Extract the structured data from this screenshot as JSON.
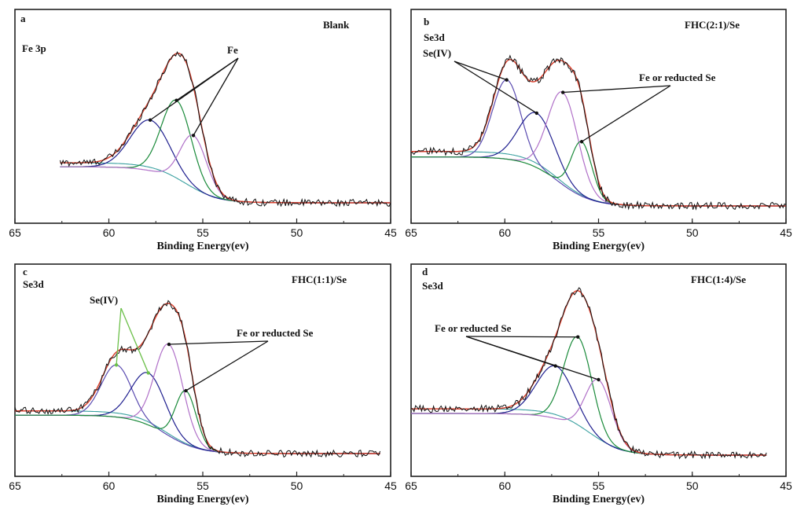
{
  "chart_data": [
    {
      "type": "line",
      "panel_label": "a",
      "sample": "Blank",
      "region": "Fe 3p",
      "xlabel": "Binding Energy(ev)",
      "ylabel": "",
      "xlim": [
        65,
        45
      ],
      "x_ticks": [
        "65",
        "60",
        "55",
        "50",
        "45"
      ],
      "x_range": [
        62.6,
        45
      ],
      "baseline": 0.0,
      "background_low_start": 0.26,
      "components": [
        {
          "name": "Fe",
          "center": 57.8,
          "height": 0.33,
          "width": 1.05,
          "color": "#1f1f8f"
        },
        {
          "name": "Fe",
          "center": 56.4,
          "height": 0.52,
          "width": 0.8,
          "color": "#1a8a3a"
        },
        {
          "name": "Fe",
          "center": 55.5,
          "height": 0.35,
          "width": 0.7,
          "color": "#b070c8"
        }
      ],
      "annotations": [
        {
          "text": "Fe",
          "targets": [
            57.8,
            56.4,
            55.5
          ]
        }
      ]
    },
    {
      "type": "line",
      "panel_label": "b",
      "sample": "FHC(2:1)/Se",
      "region": "Se3d",
      "xlabel": "Binding Energy(ev)",
      "ylabel": "",
      "xlim": [
        65,
        45
      ],
      "x_ticks": [
        "65",
        "60",
        "55",
        "50",
        "45"
      ],
      "x_range": [
        65,
        45
      ],
      "baseline": 0.0,
      "background_low_start": 0.33,
      "components": [
        {
          "name": "Se(IV)",
          "center": 59.9,
          "height": 0.48,
          "width": 0.75,
          "color": "#5a4bb0"
        },
        {
          "name": "Se(IV)",
          "center": 58.3,
          "height": 0.33,
          "width": 0.95,
          "color": "#1f1f8f"
        },
        {
          "name": "Fe or reducted Se",
          "center": 56.9,
          "height": 0.56,
          "width": 0.8,
          "color": "#b070c8"
        },
        {
          "name": "Fe or reducted Se",
          "center": 55.9,
          "height": 0.33,
          "width": 0.55,
          "color": "#1a8a3a"
        }
      ],
      "annotations": [
        {
          "text": "Se(IV)",
          "targets": [
            59.9,
            58.3
          ]
        },
        {
          "text": "Fe or reducted Se",
          "targets": [
            56.9,
            55.9
          ]
        }
      ]
    },
    {
      "type": "line",
      "panel_label": "c",
      "sample": "FHC(1:1)/Se",
      "region": "Se3d",
      "xlabel": "Binding Energy(ev)",
      "ylabel": "",
      "xlim": [
        65,
        45
      ],
      "x_ticks": [
        "65",
        "60",
        "55",
        "50",
        "45"
      ],
      "x_range": [
        65,
        45.5
      ],
      "baseline": 0.0,
      "background_low_start": 0.27,
      "components": [
        {
          "name": "Se(IV)",
          "center": 59.6,
          "height": 0.33,
          "width": 0.8,
          "color": "#5a4bb0"
        },
        {
          "name": "Se(IV)",
          "center": 57.9,
          "height": 0.33,
          "width": 0.9,
          "color": "#1f1f8f"
        },
        {
          "name": "Fe or reducted Se",
          "center": 56.8,
          "height": 0.58,
          "width": 0.75,
          "color": "#b070c8"
        },
        {
          "name": "Fe or reducted Se",
          "center": 55.9,
          "height": 0.34,
          "width": 0.55,
          "color": "#1a8a3a"
        }
      ],
      "annotations": [
        {
          "text": "Se(IV)",
          "targets": [
            59.6,
            57.9
          ]
        },
        {
          "text": "Fe or reducted Se",
          "targets": [
            56.8,
            55.9
          ]
        }
      ]
    },
    {
      "type": "line",
      "panel_label": "d",
      "sample": "FHC(1:4)/Se",
      "region": "Se3d",
      "xlabel": "Binding Energy(ev)",
      "ylabel": "",
      "xlim": [
        65,
        45
      ],
      "x_ticks": [
        "65",
        "60",
        "55",
        "50",
        "45"
      ],
      "x_range": [
        65,
        46
      ],
      "baseline": 0.0,
      "background_low_start": 0.29,
      "components": [
        {
          "name": "Fe or reducted Se",
          "center": 57.3,
          "height": 0.33,
          "width": 1.0,
          "color": "#1f1f8f"
        },
        {
          "name": "Fe or reducted Se",
          "center": 56.1,
          "height": 0.57,
          "width": 0.75,
          "color": "#1a8a3a"
        },
        {
          "name": "Fe or reducted Se",
          "center": 55.0,
          "height": 0.38,
          "width": 0.7,
          "color": "#b070c8"
        }
      ],
      "annotations": [
        {
          "text": "Fe or reducted Se",
          "targets": [
            57.3,
            56.1,
            55.0
          ]
        }
      ]
    }
  ],
  "colors": {
    "raw": "#111111",
    "envelope": "#d9412f",
    "background": "#3aa0a0"
  }
}
